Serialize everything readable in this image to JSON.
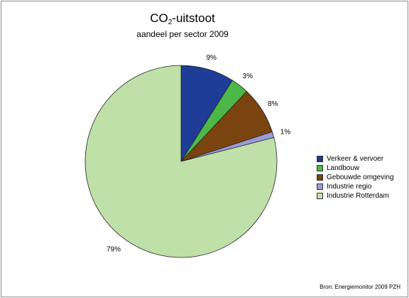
{
  "chart_data": {
    "type": "pie",
    "title_main": "CO",
    "title_sub": "2",
    "title_suffix": "-uitstoot",
    "subtitle": "aandeel per sector 2009",
    "categories": [
      "Verkeer & vervoer",
      "Landbouw",
      "Gebouwde omgeving",
      "Industrie regio",
      "Industrie Rotterdam"
    ],
    "values": [
      9,
      3,
      8,
      1,
      79
    ],
    "value_labels": [
      "9%",
      "3%",
      "8%",
      "1%",
      "79%"
    ],
    "colors": [
      "#1f3c97",
      "#4db848",
      "#7a4410",
      "#9b9bd6",
      "#bfe0a8"
    ],
    "legend_position": "right",
    "source": "Bron: Energiemonitor 2009 PZH"
  }
}
